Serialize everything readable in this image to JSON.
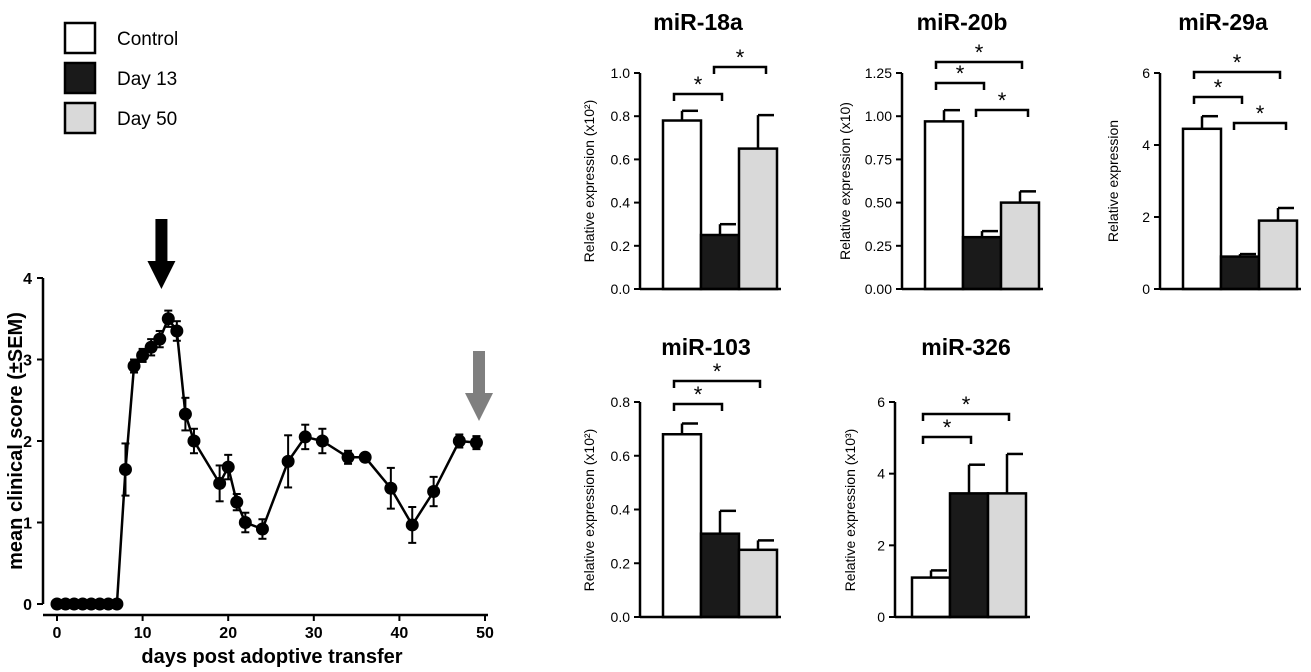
{
  "legend": [
    {
      "label": "Control",
      "color": "#ffffff"
    },
    {
      "label": "Day 13",
      "color": "#1a1a1a"
    },
    {
      "label": "Day 50",
      "color": "#d9d9d9"
    }
  ],
  "chart_data": [
    {
      "type": "line",
      "xlabel": "days post adoptive transfer",
      "ylabel": "mean clinical score (±SEM)",
      "xlim": [
        0,
        50
      ],
      "ylim": [
        0,
        4
      ],
      "xticks": [
        "0",
        "10",
        "20",
        "30",
        "40",
        "50"
      ],
      "yticks": [
        "0",
        "1",
        "2",
        "3",
        "4"
      ],
      "x": [
        0,
        1,
        2,
        3,
        4,
        5,
        6,
        7,
        8,
        9,
        10,
        11,
        12,
        13,
        14,
        15,
        16,
        19,
        20,
        21,
        22,
        24,
        27,
        29,
        31,
        34,
        36,
        39,
        41.5,
        44,
        47,
        49
      ],
      "y": [
        0,
        0,
        0,
        0,
        0,
        0,
        0,
        0,
        1.65,
        2.92,
        3.05,
        3.15,
        3.25,
        3.5,
        3.35,
        2.33,
        2.0,
        1.48,
        1.68,
        1.25,
        1.0,
        0.92,
        1.75,
        2.05,
        2.0,
        1.8,
        1.8,
        1.42,
        0.97,
        1.38,
        2.0,
        1.98
      ],
      "err": [
        0,
        0,
        0,
        0,
        0,
        0,
        0,
        0,
        0.32,
        0.08,
        0.08,
        0.1,
        0.1,
        0.1,
        0.12,
        0.2,
        0.15,
        0.22,
        0.15,
        0.1,
        0.12,
        0.12,
        0.32,
        0.15,
        0.15,
        0.08,
        0.05,
        0.25,
        0.22,
        0.18,
        0.08,
        0.08
      ],
      "annotations": [
        {
          "type": "arrow",
          "x": 12.2,
          "color": "#000000"
        },
        {
          "type": "arrow",
          "x": 49.3,
          "color": "#7f7f7f"
        }
      ]
    },
    {
      "type": "bar",
      "title": "miR-18a",
      "ylabel": "Relative expression (x10²)",
      "categories": [
        "Control",
        "Day 13",
        "Day 50"
      ],
      "values": [
        0.78,
        0.25,
        0.65
      ],
      "err": [
        0.045,
        0.05,
        0.155
      ],
      "ylim": [
        0,
        1.0
      ],
      "yticks": [
        "0.0",
        "0.2",
        "0.4",
        "0.6",
        "0.8",
        "1.0"
      ],
      "significance": [
        [
          "Control",
          "Day 13",
          "*"
        ],
        [
          "Day 13",
          "Day 50",
          "*"
        ]
      ]
    },
    {
      "type": "bar",
      "title": "miR-20b",
      "ylabel": "Relative expression (x10)",
      "categories": [
        "Control",
        "Day 13",
        "Day 50"
      ],
      "values": [
        0.97,
        0.3,
        0.5
      ],
      "err": [
        0.065,
        0.035,
        0.065
      ],
      "ylim": [
        0,
        1.25
      ],
      "yticks": [
        "0.00",
        "0.25",
        "0.50",
        "0.75",
        "1.00",
        "1.25"
      ],
      "significance": [
        [
          "Control",
          "Day 13",
          "*"
        ],
        [
          "Day 13",
          "Day 50",
          "*"
        ],
        [
          "Control",
          "Day 50",
          "*"
        ]
      ]
    },
    {
      "type": "bar",
      "title": "miR-29a",
      "ylabel": "Relative expression",
      "categories": [
        "Control",
        "Day 13",
        "Day 50"
      ],
      "values": [
        4.45,
        0.9,
        1.9
      ],
      "err": [
        0.35,
        0.07,
        0.35
      ],
      "ylim": [
        0,
        6
      ],
      "yticks": [
        "0",
        "2",
        "4",
        "6"
      ],
      "significance": [
        [
          "Control",
          "Day 13",
          "*"
        ],
        [
          "Day 13",
          "Day 50",
          "*"
        ],
        [
          "Control",
          "Day 50",
          "*"
        ]
      ]
    },
    {
      "type": "bar",
      "title": "miR-103",
      "ylabel": "Relative expression (x10²)",
      "categories": [
        "Control",
        "Day 13",
        "Day 50"
      ],
      "values": [
        0.68,
        0.31,
        0.25
      ],
      "err": [
        0.04,
        0.085,
        0.035
      ],
      "ylim": [
        0,
        0.8
      ],
      "yticks": [
        "0.0",
        "0.2",
        "0.4",
        "0.6",
        "0.8"
      ],
      "significance": [
        [
          "Control",
          "Day 13",
          "*"
        ],
        [
          "Control",
          "Day 50",
          "*"
        ]
      ]
    },
    {
      "type": "bar",
      "title": "miR-326",
      "ylabel": "Relative expression (x10³)",
      "categories": [
        "Control",
        "Day 13",
        "Day 50"
      ],
      "values": [
        1.1,
        3.45,
        3.45
      ],
      "err": [
        0.2,
        0.8,
        1.1
      ],
      "ylim": [
        0,
        6
      ],
      "yticks": [
        "0",
        "2",
        "4",
        "6"
      ],
      "significance": [
        [
          "Control",
          "Day 13",
          "*"
        ],
        [
          "Control",
          "Day 50",
          "*"
        ]
      ]
    }
  ]
}
